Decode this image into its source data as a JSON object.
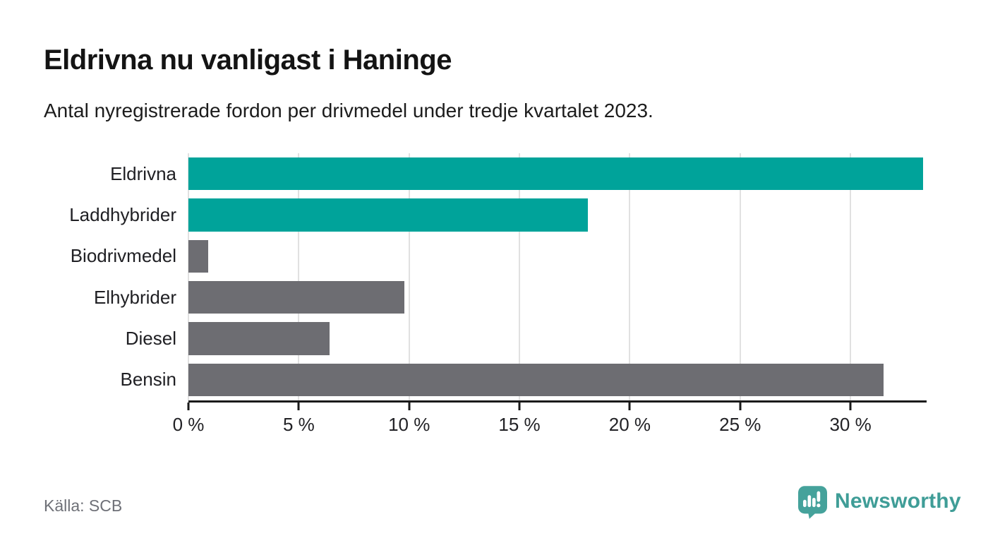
{
  "header": {
    "title": "Eldrivna nu vanligast i Haninge",
    "subtitle": "Antal nyregistrerade fordon per drivmedel under tredje kvartalet 2023."
  },
  "chart_data": {
    "type": "bar",
    "orientation": "horizontal",
    "title": "Eldrivna nu vanligast i Haninge",
    "subtitle": "Antal nyregistrerade fordon per drivmedel under tredje kvartalet 2023.",
    "categories": [
      "Eldrivna",
      "Laddhybrider",
      "Biodrivmedel",
      "Elhybrider",
      "Diesel",
      "Bensin"
    ],
    "values": [
      33.3,
      18.1,
      0.9,
      9.8,
      6.4,
      31.5
    ],
    "unit": "%",
    "highlighted": [
      true,
      true,
      false,
      false,
      false,
      false
    ],
    "xlim": [
      0,
      33.45
    ],
    "grid": true,
    "ticks": [
      {
        "value": 0,
        "label": "0 %"
      },
      {
        "value": 5,
        "label": "5 %"
      },
      {
        "value": 10,
        "label": "10 %"
      },
      {
        "value": 15,
        "label": "15 %"
      },
      {
        "value": 20,
        "label": "20 %"
      },
      {
        "value": 25,
        "label": "25 %"
      },
      {
        "value": 30,
        "label": "30 %"
      }
    ],
    "colors": {
      "highlight": "#00a39a",
      "default": "#6d6d72",
      "gridline": "#e1e1e1",
      "axis": "#1a1a1a"
    }
  },
  "footer": {
    "source": "Källa: SCB",
    "brand": "Newsworthy",
    "brand_color": "#3f9d97"
  }
}
